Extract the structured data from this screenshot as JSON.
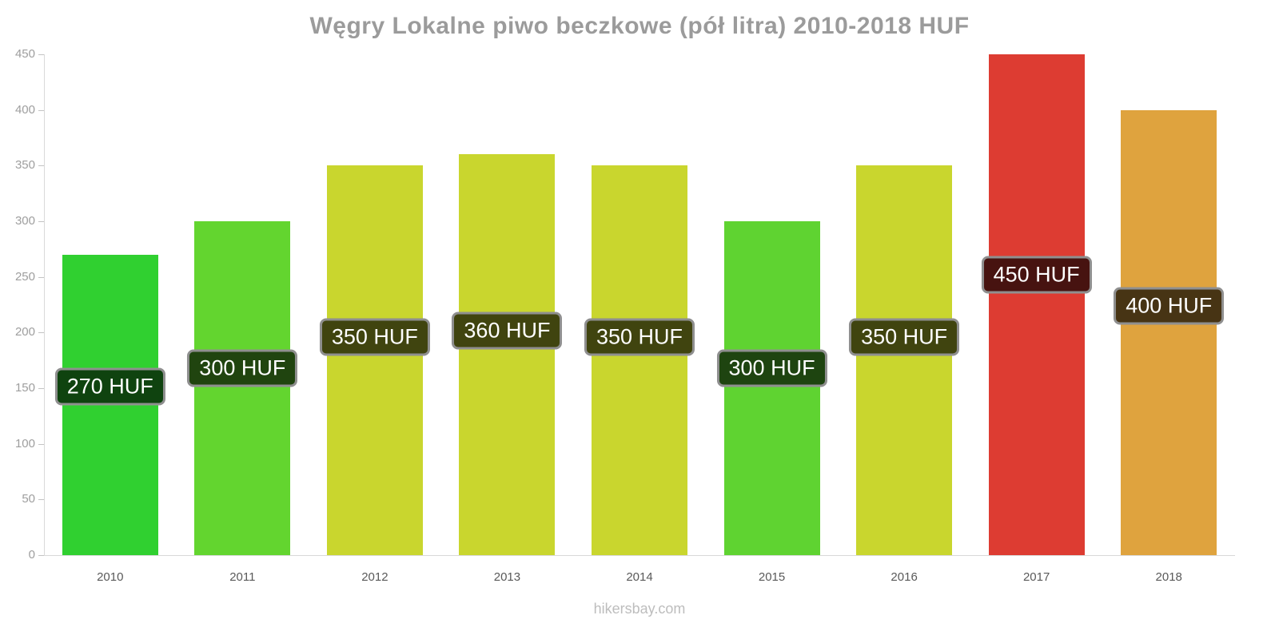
{
  "title": "Węgry Lokalne piwo beczkowe (pół litra) 2010-2018 HUF",
  "footer": "hikersbay.com",
  "chart_data": {
    "type": "bar",
    "title": "Węgry Lokalne piwo beczkowe (pół litra) 2010-2018 HUF",
    "xlabel": "",
    "ylabel": "",
    "categories": [
      "2010",
      "2011",
      "2012",
      "2013",
      "2014",
      "2015",
      "2016",
      "2017",
      "2018"
    ],
    "values": [
      270,
      300,
      350,
      360,
      350,
      300,
      350,
      450,
      400
    ],
    "labels": [
      "270 HUF",
      "300 HUF",
      "350 HUF",
      "360 HUF",
      "350 HUF",
      "300 HUF",
      "350 HUF",
      "450 HUF",
      "400 HUF"
    ],
    "bar_colors": [
      "#30d030",
      "#63d52f",
      "#c9d62e",
      "#c9d62e",
      "#c9d62e",
      "#5fd331",
      "#c9d62e",
      "#dd3c32",
      "#dfa33e"
    ],
    "ylim": [
      0,
      450
    ],
    "yticks": [
      0,
      50,
      100,
      150,
      200,
      250,
      300,
      350,
      400,
      450
    ],
    "grid": false,
    "legend": "none"
  }
}
